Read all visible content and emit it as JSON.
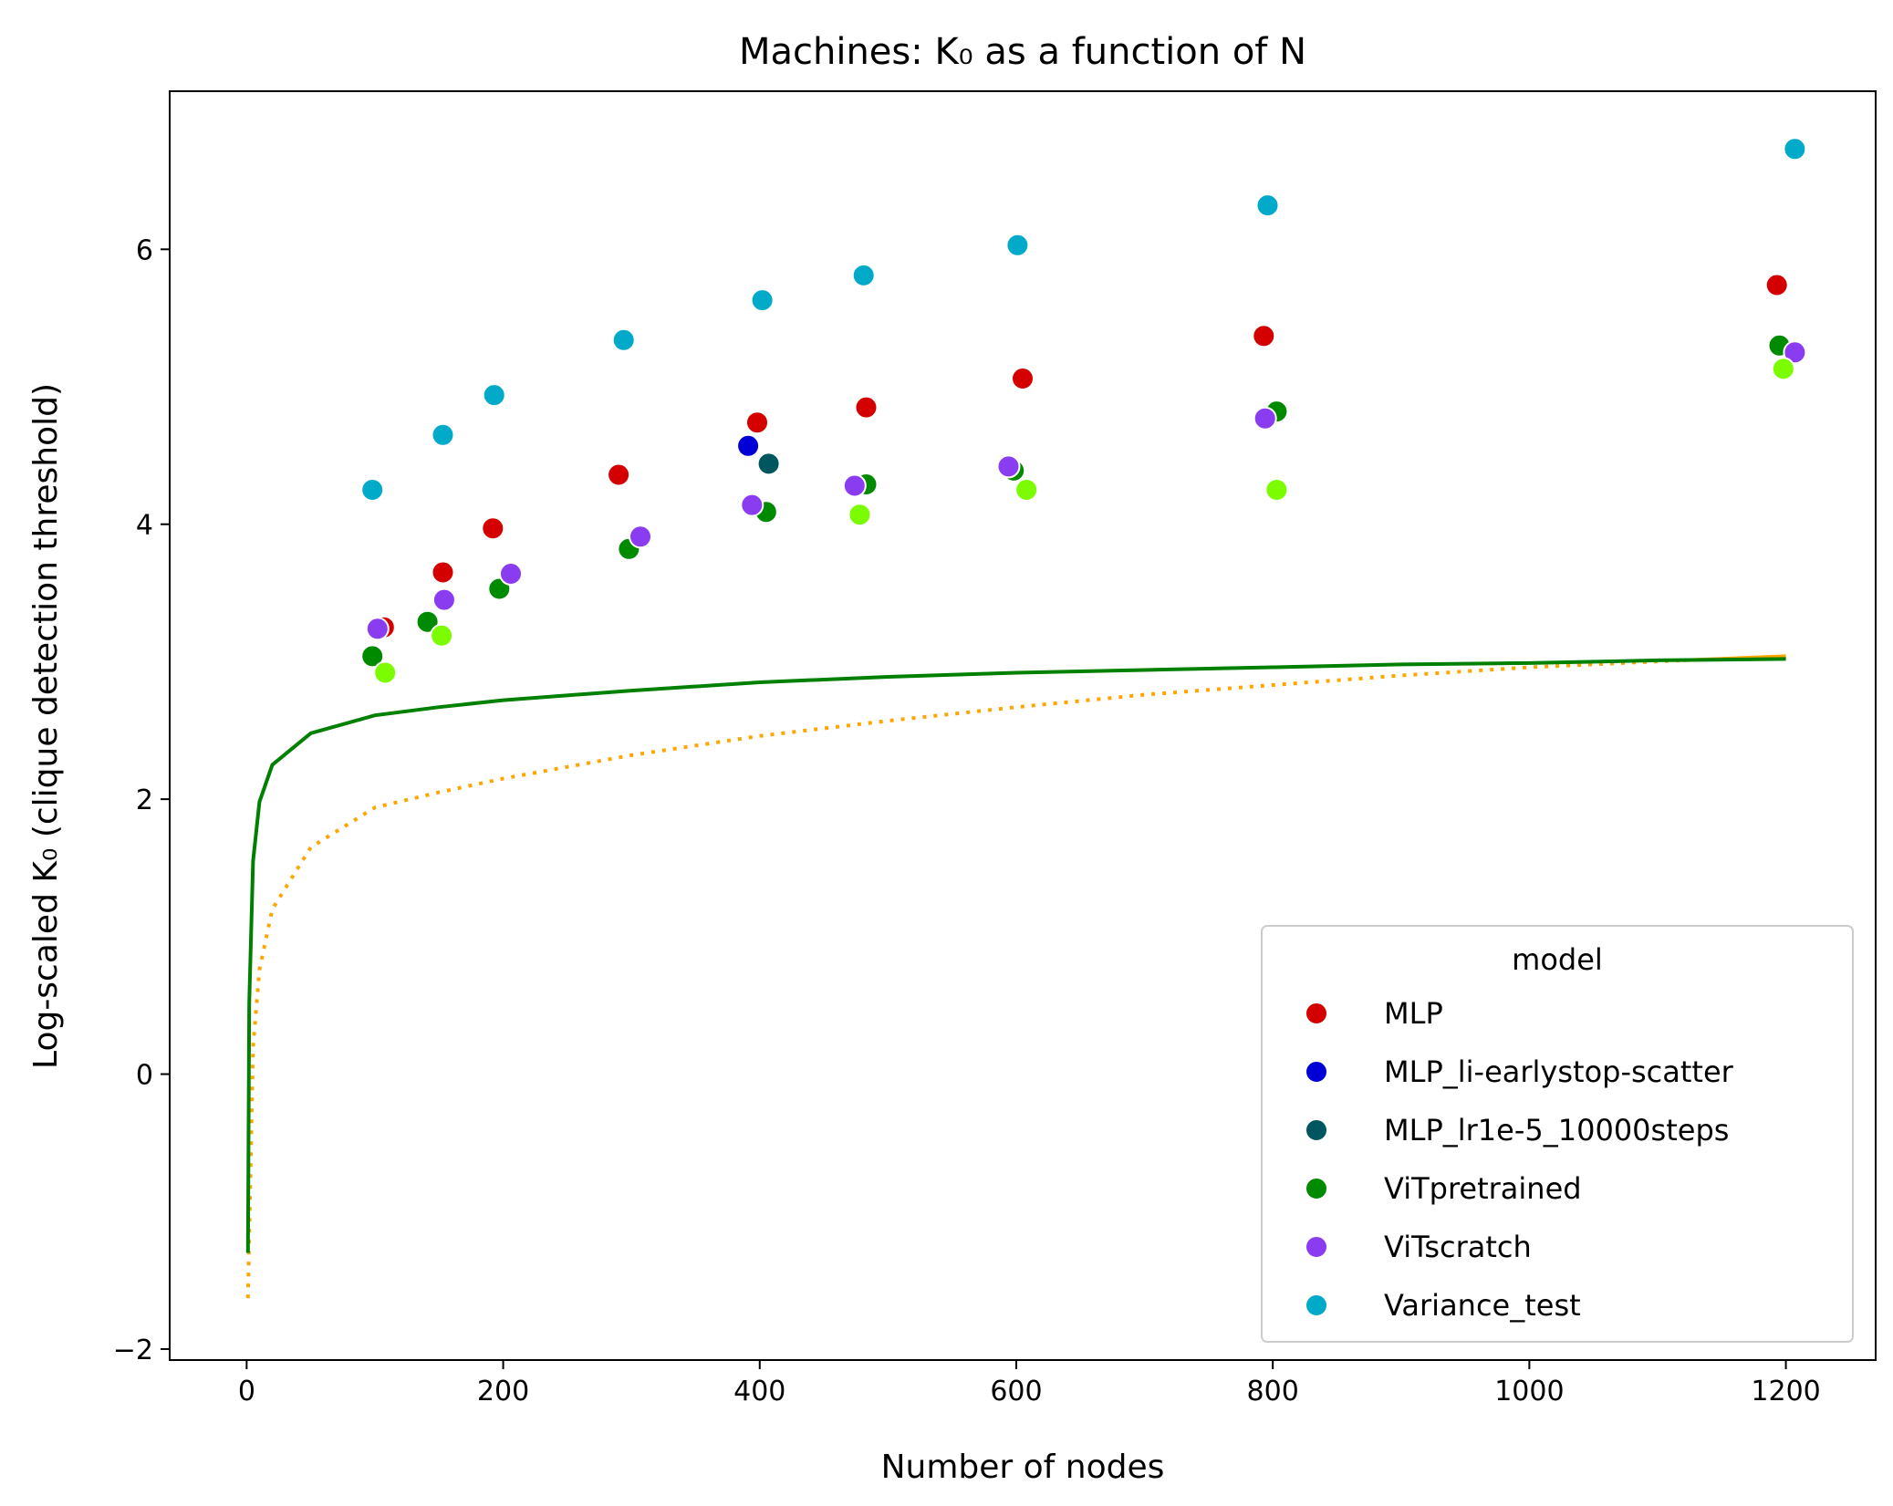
{
  "chart_data": {
    "type": "scatter",
    "title": "Machines: K₀ as a function of N",
    "xlabel": "Number of nodes",
    "ylabel": "Log-scaled K₀ (clique detection threshold)",
    "xlim": [
      -60,
      1270
    ],
    "ylim": [
      -2.08,
      7.15
    ],
    "x_ticks": [
      0,
      200,
      400,
      600,
      800,
      1000,
      1200
    ],
    "x_tick_labels": [
      "0",
      "200",
      "400",
      "600",
      "800",
      "1000",
      "1200"
    ],
    "y_ticks": [
      -2,
      0,
      2,
      4,
      6
    ],
    "y_tick_labels": [
      "−2",
      "0",
      "2",
      "4",
      "6"
    ],
    "grid": false,
    "legend": {
      "title": "model",
      "position": "lower right"
    },
    "series": [
      {
        "name": "MLP",
        "color": "#d40000",
        "points": [
          [
            107,
            3.25
          ],
          [
            153,
            3.65
          ],
          [
            192,
            3.97
          ],
          [
            290,
            4.36
          ],
          [
            398,
            4.74
          ],
          [
            483,
            4.85
          ],
          [
            605,
            5.06
          ],
          [
            793,
            5.37
          ],
          [
            1193,
            5.74
          ]
        ]
      },
      {
        "name": "MLP_li-earlystop-scatter",
        "color": "#0000d6",
        "points": [
          [
            391,
            4.57
          ]
        ]
      },
      {
        "name": "MLP_lr1e-5_10000steps",
        "color": "#00565e",
        "points": [
          [
            407,
            4.44
          ]
        ]
      },
      {
        "name": "ViTpretrained",
        "color": "#008a00",
        "points": [
          [
            98,
            3.04
          ],
          [
            141,
            3.29
          ],
          [
            197,
            3.53
          ],
          [
            298,
            3.82
          ],
          [
            405,
            4.09
          ],
          [
            483,
            4.29
          ],
          [
            598,
            4.39
          ],
          [
            803,
            4.82
          ],
          [
            1195,
            5.3
          ]
        ]
      },
      {
        "name": "ViTscratch",
        "color": "#8a3cf0",
        "points": [
          [
            102,
            3.24
          ],
          [
            154,
            3.45
          ],
          [
            206,
            3.64
          ],
          [
            307,
            3.91
          ],
          [
            394,
            4.14
          ],
          [
            474,
            4.28
          ],
          [
            594,
            4.42
          ],
          [
            794,
            4.77
          ],
          [
            1207,
            5.25
          ]
        ]
      },
      {
        "name": "Variance_test",
        "color": "#00aac8",
        "points": [
          [
            98,
            4.25
          ],
          [
            153,
            4.65
          ],
          [
            193,
            4.94
          ],
          [
            294,
            5.34
          ],
          [
            402,
            5.63
          ],
          [
            481,
            5.81
          ],
          [
            601,
            6.03
          ],
          [
            796,
            6.32
          ],
          [
            1207,
            6.73
          ]
        ]
      },
      {
        "name": "",
        "color": "#7cfc00",
        "points": [
          [
            108,
            2.92
          ],
          [
            152,
            3.19
          ],
          [
            478,
            4.07
          ],
          [
            608,
            4.25
          ],
          [
            803,
            4.25
          ],
          [
            1198,
            5.13
          ]
        ]
      }
    ],
    "curves": [
      {
        "style": "solid",
        "color": "orange",
        "x": [
          1120,
          1200
        ],
        "y": [
          3.01,
          3.04
        ]
      },
      {
        "style": "dotted",
        "color": "orange",
        "x": [
          1,
          5,
          10,
          20,
          50,
          100,
          150,
          200,
          300,
          400,
          500,
          600,
          700,
          800,
          900,
          1000,
          1120
        ],
        "y": [
          -1.63,
          0.2,
          0.76,
          1.2,
          1.65,
          1.94,
          2.05,
          2.15,
          2.32,
          2.46,
          2.57,
          2.67,
          2.76,
          2.83,
          2.9,
          2.96,
          3.01
        ]
      },
      {
        "style": "solid",
        "color": "green",
        "x": [
          1,
          2,
          5,
          10,
          20,
          50,
          100,
          150,
          200,
          300,
          400,
          500,
          600,
          700,
          800,
          900,
          1000,
          1100,
          1200
        ],
        "y": [
          -1.3,
          0.52,
          1.55,
          1.98,
          2.25,
          2.48,
          2.61,
          2.67,
          2.72,
          2.79,
          2.85,
          2.89,
          2.92,
          2.94,
          2.96,
          2.98,
          2.99,
          3.01,
          3.02
        ]
      }
    ]
  }
}
